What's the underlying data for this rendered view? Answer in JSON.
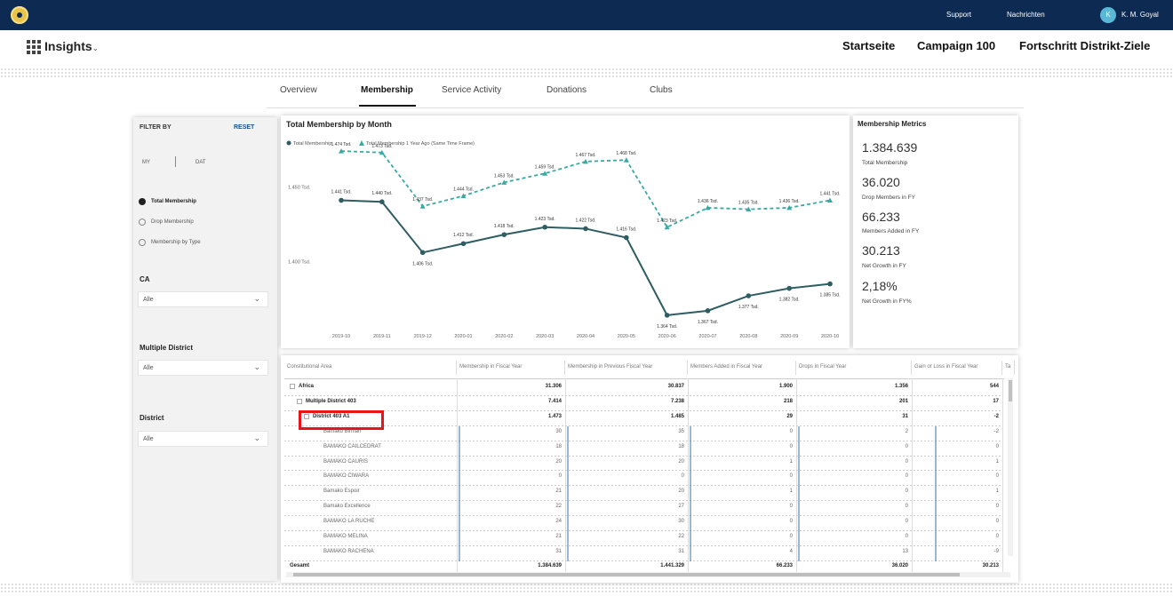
{
  "topbar": {
    "support": "Support",
    "messages": "Nachrichten",
    "user_initials": "K",
    "user_name": "K. M. Goyal"
  },
  "header": {
    "app_name": "Insights",
    "nav": [
      "Startseite",
      "Campaign 100",
      "Fortschritt Distrikt-Ziele"
    ]
  },
  "tabs": [
    "Overview",
    "Membership",
    "Service Activity",
    "Donations",
    "Clubs"
  ],
  "active_tab": "Membership",
  "filter": {
    "title": "FILTER BY",
    "reset": "RESET",
    "toggle_left": "MY",
    "toggle_right": "DAT",
    "radios": [
      "Total Membership",
      "Drop Membership",
      "Membership by Type"
    ],
    "selected_radio": "Total Membership",
    "ca_label": "CA",
    "ca_value": "Alle",
    "md_label": "Multiple District",
    "md_value": "Alle",
    "district_label": "District",
    "district_value": "Alle"
  },
  "chart": {
    "title": "Total Membership by Month",
    "legend": [
      "Total Membership",
      "Total Membership 1 Year Ago (Same Time Frame)"
    ]
  },
  "chart_data": {
    "type": "line",
    "title": "Total Membership by Month",
    "x": [
      "2019-10",
      "2019-11",
      "2019-12",
      "2020-01",
      "2020-02",
      "2020-03",
      "2020-04",
      "2020-05",
      "2020-06",
      "2020-07",
      "2020-08",
      "2020-09",
      "2020-10"
    ],
    "ylabel_ticks": [
      "1.450 Tsd.",
      "1.400 Tsd."
    ],
    "ylim": [
      1355,
      1480
    ],
    "series": [
      {
        "name": "Total Membership",
        "color": "#2e5d62",
        "values": [
          1441,
          1440,
          1406,
          1412,
          1418,
          1423,
          1422,
          1416,
          1364,
          1367,
          1377,
          1382,
          1385
        ],
        "labels": [
          "1.441 Tsd.",
          "1.440 Tsd.",
          "1.406 Tsd.",
          "1.412 Tsd.",
          "1.418 Tsd.",
          "1.423 Tsd.",
          "1.422 Tsd.",
          "1.416 Tsd.",
          "1.364 Tsd.",
          "1.367 Tsd.",
          "1.377 Tsd.",
          "1.382 Tsd.",
          "1.385 Tsd."
        ]
      },
      {
        "name": "Total Membership 1 Year Ago (Same Time Frame)",
        "color": "#3aa9a3",
        "values": [
          1474,
          1473,
          1437,
          1444,
          1453,
          1459,
          1467,
          1468,
          1423,
          1436,
          1435,
          1436,
          1441
        ],
        "labels": [
          "1.474 Tsd.",
          "1.473 Tsd.",
          "1.437 Tsd.",
          "1.444 Tsd.",
          "1.453 Tsd.",
          "1.459 Tsd.",
          "1.467 Tsd.",
          "1.468 Tsd.",
          "1.423 Tsd.",
          "1.436 Tsd.",
          "1.435 Tsd.",
          "1.436 Tsd.",
          "1.441 Tsd."
        ]
      }
    ]
  },
  "metrics": {
    "title": "Membership Metrics",
    "items": [
      {
        "value": "1.384.639",
        "label": "Total Membership"
      },
      {
        "value": "36.020",
        "label": "Drop Members in FY"
      },
      {
        "value": "66.233",
        "label": "Members Added in FY"
      },
      {
        "value": "30.213",
        "label": "Net Growth in FY"
      },
      {
        "value": "2,18%",
        "label": "Net Growth in FY%"
      }
    ]
  },
  "table": {
    "headers": [
      "Constitutional Area",
      "Membership in Fiscal Year",
      "Membership in Previous Fiscal Year",
      "Members Added in Fiscal Year",
      "Drops in Fiscal Year",
      "Gain or Loss in Fiscal Year",
      "Ta"
    ],
    "rows": [
      {
        "name": "Africa",
        "level": 0,
        "values": [
          "31.306",
          "30.837",
          "1.900",
          "1.356",
          "544"
        ]
      },
      {
        "name": "Multiple District 403",
        "level": 1,
        "values": [
          "7.414",
          "7.238",
          "218",
          "201",
          "17"
        ]
      },
      {
        "name": "District 403 A1",
        "level": 2,
        "values": [
          "1.473",
          "1.485",
          "29",
          "31",
          "-2"
        ]
      },
      {
        "name": "Bamako Birnian",
        "level": 3,
        "values": [
          "30",
          "35",
          "0",
          "2",
          "-2"
        ]
      },
      {
        "name": "BAMAKO CAILCEDRAT",
        "level": 3,
        "values": [
          "18",
          "18",
          "0",
          "0",
          "0"
        ]
      },
      {
        "name": "BAMAKO CAURIS",
        "level": 3,
        "values": [
          "20",
          "20",
          "1",
          "0",
          "1"
        ]
      },
      {
        "name": "BAMAKO CIWARA",
        "level": 3,
        "values": [
          "0",
          "0",
          "0",
          "0",
          "0"
        ]
      },
      {
        "name": "Bamako Espoir",
        "level": 3,
        "values": [
          "21",
          "20",
          "1",
          "0",
          "1"
        ]
      },
      {
        "name": "Bamako Excellence",
        "level": 3,
        "values": [
          "22",
          "27",
          "0",
          "0",
          "0"
        ]
      },
      {
        "name": "BAMAKO LA RUCHE",
        "level": 3,
        "values": [
          "24",
          "30",
          "0",
          "0",
          "0"
        ]
      },
      {
        "name": "BAMAKO MELINA",
        "level": 3,
        "values": [
          "21",
          "22",
          "0",
          "0",
          "0"
        ]
      },
      {
        "name": "BAMAKO RACHENA",
        "level": 3,
        "values": [
          "31",
          "31",
          "4",
          "13",
          "-9"
        ]
      }
    ],
    "total": {
      "name": "Gesamt",
      "values": [
        "1.384.639",
        "1.441.329",
        "66.233",
        "36.020",
        "30.213"
      ]
    }
  }
}
